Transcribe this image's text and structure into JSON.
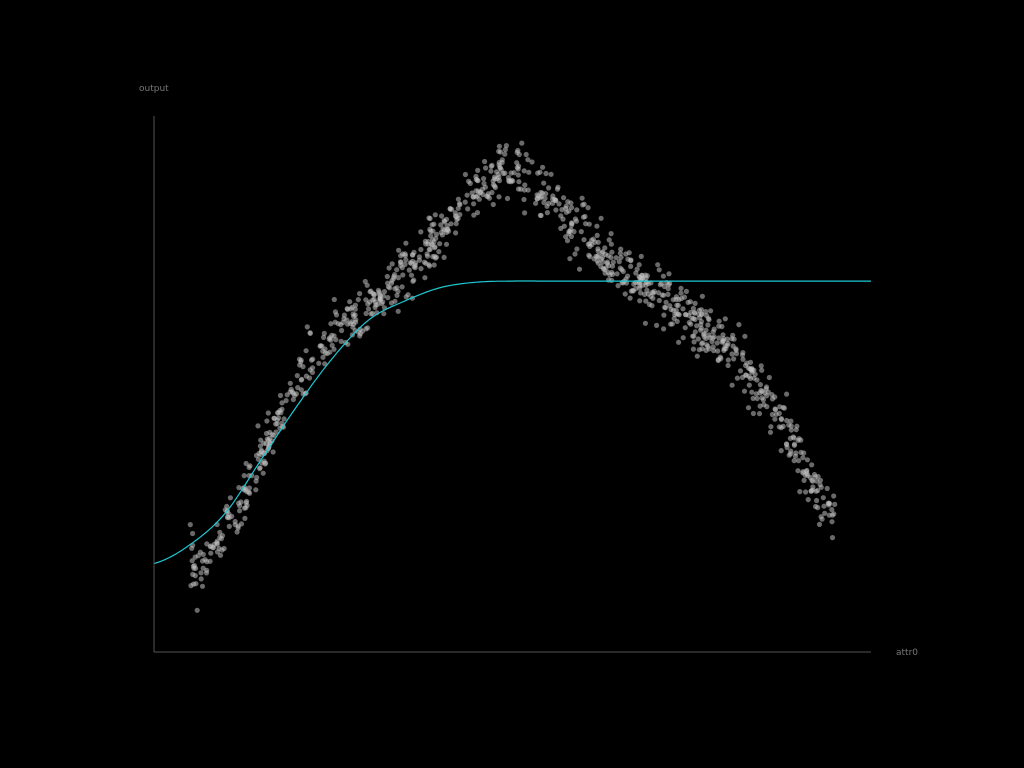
{
  "chart_data": {
    "type": "scatter",
    "title": "",
    "xlabel": "attr0",
    "ylabel": "output",
    "grid": false,
    "legend": "none",
    "colors": {
      "background": "#000000",
      "axis": "#555555",
      "points": "#bfbfbf",
      "fit_line": "#1ec8d2"
    },
    "xlim": [
      0,
      1
    ],
    "ylim": [
      0,
      1
    ],
    "scatter_trend": {
      "x": [
        0.05,
        0.07,
        0.09,
        0.11,
        0.13,
        0.15,
        0.17,
        0.19,
        0.21,
        0.23,
        0.25,
        0.27,
        0.29,
        0.31,
        0.33,
        0.35,
        0.37,
        0.39,
        0.41,
        0.43,
        0.45,
        0.47,
        0.49,
        0.51,
        0.53,
        0.55,
        0.57,
        0.59,
        0.61,
        0.63,
        0.65,
        0.67,
        0.69,
        0.71,
        0.73,
        0.75,
        0.77,
        0.79,
        0.81,
        0.83,
        0.85,
        0.87,
        0.89,
        0.91,
        0.93,
        0.95
      ],
      "y": [
        0.17,
        0.16,
        0.2,
        0.26,
        0.3,
        0.36,
        0.42,
        0.48,
        0.52,
        0.56,
        0.59,
        0.61,
        0.63,
        0.65,
        0.68,
        0.71,
        0.73,
        0.76,
        0.79,
        0.83,
        0.86,
        0.88,
        0.91,
        0.89,
        0.87,
        0.85,
        0.82,
        0.79,
        0.77,
        0.74,
        0.72,
        0.7,
        0.68,
        0.66,
        0.64,
        0.62,
        0.6,
        0.58,
        0.55,
        0.52,
        0.49,
        0.44,
        0.39,
        0.34,
        0.29,
        0.26
      ],
      "noise_sd": 0.025,
      "point_count": 1000
    },
    "fit_curve": {
      "x": [
        0.0,
        0.05,
        0.1,
        0.15,
        0.2,
        0.25,
        0.3,
        0.35,
        0.4,
        0.45,
        0.5,
        0.55,
        0.6,
        0.65,
        0.7,
        0.75,
        0.8,
        0.85,
        0.9,
        0.95,
        1.0
      ],
      "y": [
        0.165,
        0.2,
        0.26,
        0.36,
        0.46,
        0.55,
        0.62,
        0.655,
        0.68,
        0.69,
        0.692,
        0.692,
        0.692,
        0.692,
        0.692,
        0.692,
        0.692,
        0.692,
        0.692,
        0.692,
        0.692
      ]
    }
  }
}
